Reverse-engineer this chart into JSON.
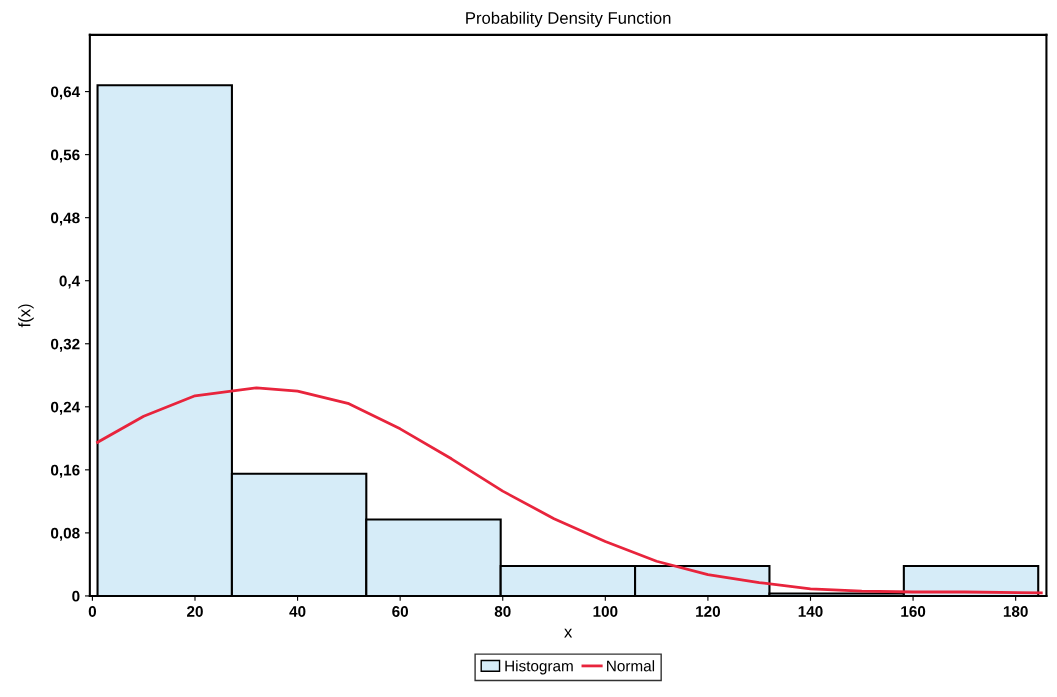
{
  "chart_data": {
    "type": "histogram",
    "title": "Probability Density Function",
    "xlabel": "x",
    "ylabel": "f(x)",
    "bins": [
      1,
      27.2,
      53.4,
      79.6,
      105.8,
      132,
      158.2,
      184.4
    ],
    "series": [
      {
        "name": "Histogram",
        "color": "#d6ecf8",
        "values": [
          0.648,
          0.155,
          0.097,
          0.038,
          0.038,
          0.003,
          0.038
        ]
      },
      {
        "name": "Normal",
        "type": "line",
        "color": "#e8243c",
        "x": [
          1,
          10,
          20,
          32,
          40,
          50,
          60,
          70,
          80,
          90,
          100,
          110,
          120,
          130,
          140,
          150,
          160,
          170,
          185
        ],
        "values": [
          0.195,
          0.228,
          0.254,
          0.264,
          0.26,
          0.244,
          0.212,
          0.174,
          0.133,
          0.098,
          0.069,
          0.044,
          0.027,
          0.017,
          0.009,
          0.006,
          0.005,
          0.005,
          0.004
        ]
      }
    ],
    "xlim": [
      -0.5,
      186
    ],
    "xticks": [
      0,
      20,
      40,
      60,
      80,
      100,
      120,
      140,
      160,
      180
    ],
    "ylim": [
      0,
      0.712
    ],
    "yticks": [
      {
        "value": 0,
        "label": "0"
      },
      {
        "value": 0.08,
        "label": "0,08"
      },
      {
        "value": 0.16,
        "label": "0,16"
      },
      {
        "value": 0.24,
        "label": "0,24"
      },
      {
        "value": 0.32,
        "label": "0,32"
      },
      {
        "value": 0.4,
        "label": "0,4"
      },
      {
        "value": 0.48,
        "label": "0,48"
      },
      {
        "value": 0.56,
        "label": "0,56"
      },
      {
        "value": 0.64,
        "label": "0,64"
      }
    ],
    "legend": "bottom",
    "grid": false
  }
}
